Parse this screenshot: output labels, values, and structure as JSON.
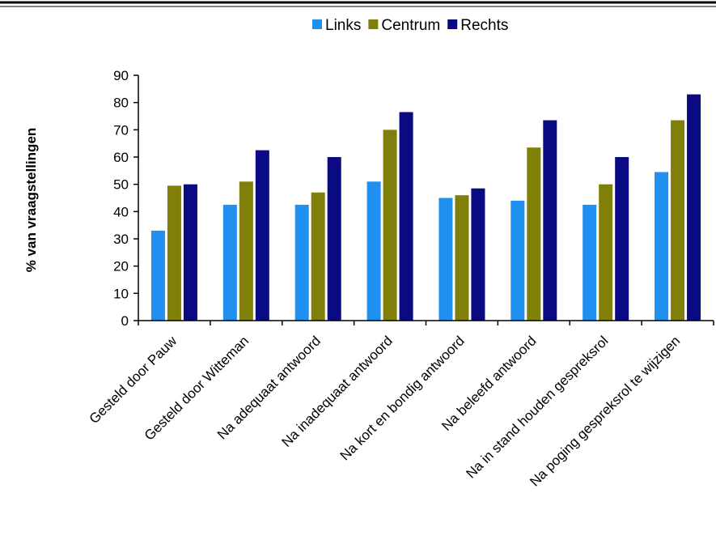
{
  "chart_data": {
    "type": "bar",
    "title": "",
    "xlabel": "",
    "ylabel": "% van vraagstellingen",
    "ylim": [
      0,
      90
    ],
    "yticks": [
      0,
      10,
      20,
      30,
      40,
      50,
      60,
      70,
      80,
      90
    ],
    "grid": false,
    "legend_position": "top",
    "categories": [
      "Gesteld door Pauw",
      "Gesteld door Witteman",
      "Na adequaat antwoord",
      "Na inadequaat antwoord",
      "Na kort en bondig antwoord",
      "Na beleefd antwoord",
      "Na in stand houden gespreksrol",
      "Na poging gespreksrol te wijzigen"
    ],
    "series": [
      {
        "name": "Links",
        "color": "#1f8ff0",
        "values": [
          33,
          42.5,
          42.5,
          51,
          45,
          44,
          42.5,
          54.5
        ]
      },
      {
        "name": "Centrum",
        "color": "#7f7f0a",
        "values": [
          49.5,
          51,
          47,
          70,
          46,
          63.5,
          50,
          73.5
        ]
      },
      {
        "name": "Rechts",
        "color": "#0a0a82",
        "values": [
          50,
          62.5,
          60,
          76.5,
          48.5,
          73.5,
          60,
          83
        ]
      }
    ]
  }
}
